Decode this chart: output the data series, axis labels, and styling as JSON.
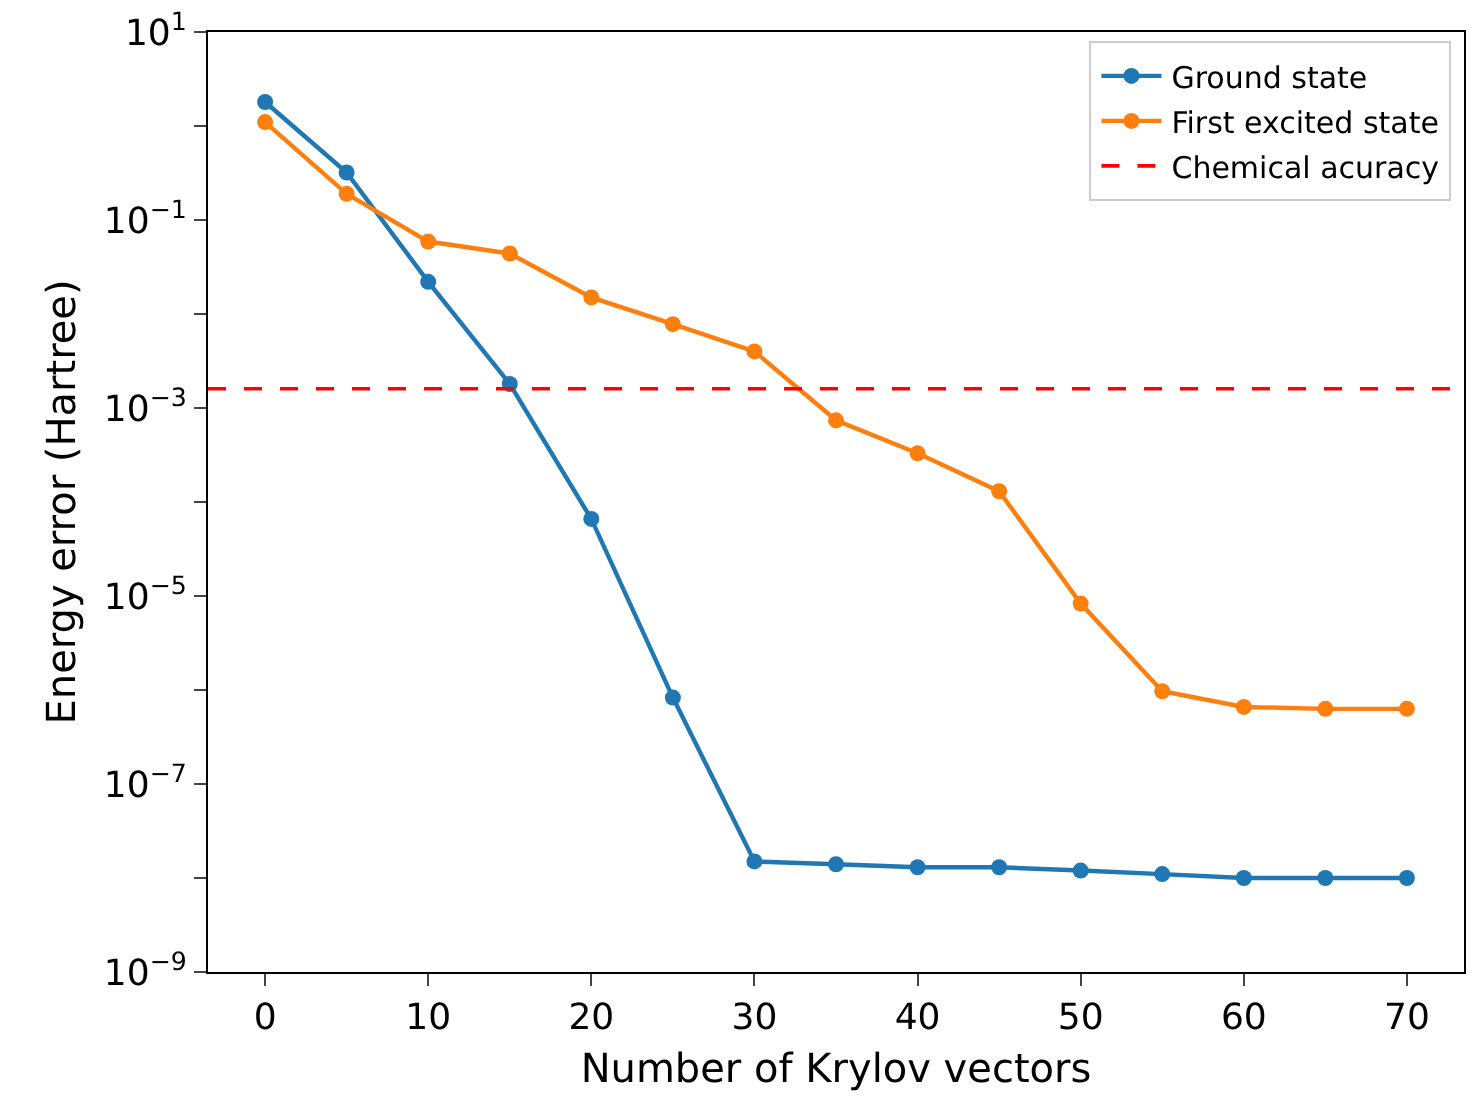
{
  "chart_data": {
    "type": "line",
    "xlabel": "Number of Krylov vectors",
    "ylabel": "Energy error (Hartree)",
    "log": "y",
    "grid": false,
    "legend": "top right",
    "marker": "circle",
    "line_style": "solid",
    "x": [
      0,
      5,
      10,
      15,
      20,
      25,
      30,
      35,
      40,
      45,
      50,
      55,
      60,
      65,
      70
    ],
    "xlim": [
      -3.5,
      73.5
    ],
    "xticks": [
      0,
      10,
      20,
      30,
      40,
      50,
      60,
      70
    ],
    "ylim": [
      1e-09,
      10
    ],
    "yticks": [
      {
        "value": 1e-09,
        "label": "10$^{−9}$"
      },
      {
        "value": 1e-08,
        "label": null
      },
      {
        "value": 1e-07,
        "label": "10$^{−7}$"
      },
      {
        "value": 1e-06,
        "label": null
      },
      {
        "value": 1e-05,
        "label": "10$^{−5}$"
      },
      {
        "value": 0.0001,
        "label": null
      },
      {
        "value": 0.001,
        "label": "10$^{−3}$"
      },
      {
        "value": 0.01,
        "label": null
      },
      {
        "value": 0.1,
        "label": "10$^{−1}$"
      },
      {
        "value": 1,
        "label": null
      },
      {
        "value": 10,
        "label": "10$^{1}$"
      }
    ],
    "series": [
      {
        "name": "Ground state",
        "color": "#1f77b4",
        "values": [
          1.8,
          0.32,
          0.022,
          0.0018,
          6.6e-05,
          8.3e-07,
          1.5e-08,
          1.4e-08,
          1.3e-08,
          1.3e-08,
          1.2e-08,
          1.1e-08,
          1e-08,
          1e-08,
          1e-08
        ]
      },
      {
        "name": "First excited state",
        "color": "#ff7f0e",
        "values": [
          1.1,
          0.19,
          0.059,
          0.044,
          0.015,
          0.0078,
          0.004,
          0.00074,
          0.00033,
          0.00013,
          8.3e-06,
          9.7e-07,
          6.6e-07,
          6.3e-07,
          6.3e-07
        ]
      }
    ],
    "ref_lines": [
      {
        "axis": "y",
        "value": 0.0016,
        "label": "Chemical acuracy",
        "color": "#ff0000",
        "line_style": "dashed"
      }
    ]
  }
}
